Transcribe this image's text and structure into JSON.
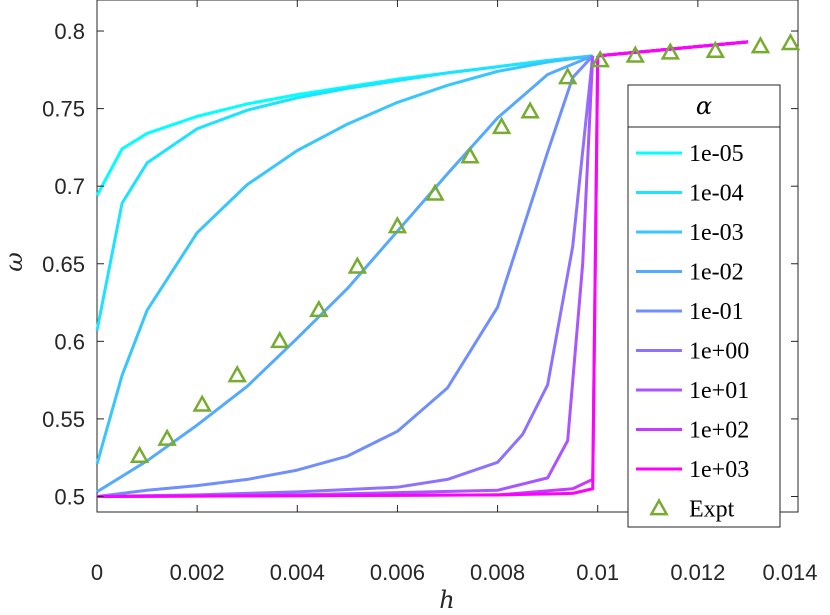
{
  "chart_data": {
    "type": "line",
    "xlabel": "h",
    "ylabel": "ω",
    "xlim": [
      0,
      0.014
    ],
    "ylim": [
      0.49,
      0.82
    ],
    "xticks": [
      0,
      0.002,
      0.004,
      0.006,
      0.008,
      0.01,
      0.012,
      0.014
    ],
    "xtick_labels": [
      "0",
      "0.002",
      "0.004",
      "0.006",
      "0.008",
      "0.01",
      "0.012",
      "0.014"
    ],
    "yticks": [
      0.5,
      0.55,
      0.6,
      0.65,
      0.7,
      0.75,
      0.8
    ],
    "ytick_labels": [
      "0.5",
      "0.55",
      "0.6",
      "0.65",
      "0.7",
      "0.75",
      "0.8"
    ],
    "legend": {
      "title": "α",
      "placement": "right"
    },
    "shared_tail": {
      "x": [
        0.01,
        0.011,
        0.012,
        0.013
      ],
      "y": [
        0.784,
        0.787,
        0.79,
        0.793
      ]
    },
    "series": [
      {
        "name": "1e-05",
        "color": "#00FFFF",
        "x": [
          0,
          0.0005,
          0.001,
          0.002,
          0.003,
          0.004,
          0.005,
          0.006,
          0.007,
          0.008,
          0.009,
          0.0099
        ],
        "y": [
          0.694,
          0.724,
          0.734,
          0.745,
          0.753,
          0.759,
          0.764,
          0.769,
          0.773,
          0.777,
          0.781,
          0.784
        ]
      },
      {
        "name": "1e-04",
        "color": "#1CE3FF",
        "x": [
          0,
          0.0005,
          0.001,
          0.002,
          0.003,
          0.004,
          0.005,
          0.006,
          0.007,
          0.008,
          0.009,
          0.0099
        ],
        "y": [
          0.607,
          0.689,
          0.715,
          0.737,
          0.749,
          0.757,
          0.763,
          0.768,
          0.773,
          0.777,
          0.781,
          0.784
        ]
      },
      {
        "name": "1e-03",
        "color": "#39C6FF",
        "x": [
          0,
          0.0005,
          0.001,
          0.002,
          0.003,
          0.004,
          0.005,
          0.006,
          0.007,
          0.008,
          0.009,
          0.0099
        ],
        "y": [
          0.521,
          0.578,
          0.62,
          0.67,
          0.701,
          0.723,
          0.74,
          0.754,
          0.765,
          0.774,
          0.78,
          0.784
        ]
      },
      {
        "name": "1e-02",
        "color": "#55AAFF",
        "x": [
          0,
          0.001,
          0.002,
          0.003,
          0.004,
          0.005,
          0.006,
          0.007,
          0.008,
          0.009,
          0.0099
        ],
        "y": [
          0.503,
          0.523,
          0.546,
          0.571,
          0.602,
          0.634,
          0.671,
          0.708,
          0.744,
          0.772,
          0.784
        ]
      },
      {
        "name": "1e-01",
        "color": "#718EFF",
        "x": [
          0,
          0.001,
          0.002,
          0.003,
          0.004,
          0.005,
          0.006,
          0.007,
          0.008,
          0.009,
          0.0095,
          0.0099
        ],
        "y": [
          0.5,
          0.504,
          0.507,
          0.511,
          0.517,
          0.526,
          0.542,
          0.57,
          0.622,
          0.722,
          0.77,
          0.784
        ]
      },
      {
        "name": "1e+00",
        "color": "#8E71FF",
        "x": [
          0,
          0.002,
          0.004,
          0.006,
          0.007,
          0.008,
          0.0085,
          0.009,
          0.0095,
          0.0099
        ],
        "y": [
          0.5,
          0.501,
          0.503,
          0.506,
          0.511,
          0.522,
          0.54,
          0.572,
          0.661,
          0.784
        ]
      },
      {
        "name": "1e+01",
        "color": "#AA55FF",
        "x": [
          0,
          0.004,
          0.008,
          0.009,
          0.0094,
          0.0097,
          0.0099
        ],
        "y": [
          0.5,
          0.501,
          0.504,
          0.512,
          0.536,
          0.65,
          0.784
        ]
      },
      {
        "name": "1e+02",
        "color": "#C639FF",
        "x": [
          0,
          0.008,
          0.0095,
          0.0099,
          0.01
        ],
        "y": [
          0.5,
          0.501,
          0.505,
          0.511,
          0.784
        ]
      },
      {
        "name": "1e+03",
        "color": "#FF00FF",
        "x": [
          0,
          0.008,
          0.0095,
          0.0099,
          0.01
        ],
        "y": [
          0.5,
          0.501,
          0.502,
          0.505,
          0.784
        ]
      }
    ],
    "expt": {
      "name": "Expt",
      "color": "#77AC30",
      "marker": "triangle",
      "x": [
        0.00085,
        0.0014,
        0.0021,
        0.0028,
        0.00365,
        0.00443,
        0.0052,
        0.006,
        0.00675,
        0.00745,
        0.00808,
        0.00865,
        0.0094,
        0.01005,
        0.01075,
        0.01145,
        0.01235,
        0.01325,
        0.01385
      ],
      "y": [
        0.526,
        0.537,
        0.559,
        0.578,
        0.6,
        0.62,
        0.648,
        0.674,
        0.695,
        0.719,
        0.738,
        0.748,
        0.77,
        0.781,
        0.784,
        0.786,
        0.787,
        0.79,
        0.792
      ]
    }
  }
}
